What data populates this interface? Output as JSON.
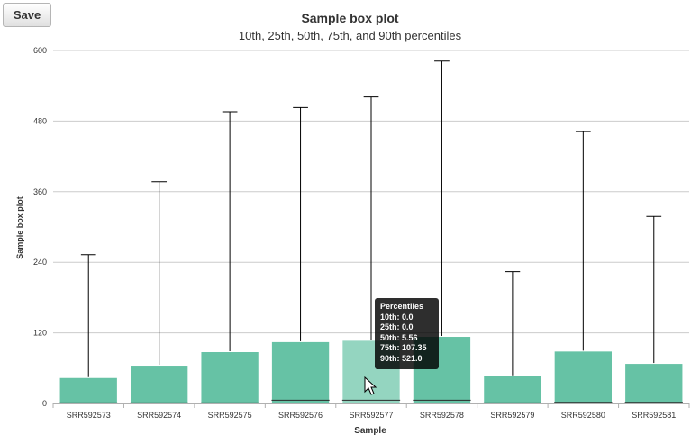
{
  "toolbar": {
    "save_label": "Save"
  },
  "colors": {
    "box": "#66c2a5",
    "box_highlight": "#94d5c0",
    "whisker": "#000000",
    "grid": "#cccccc"
  },
  "chart_data": {
    "type": "box",
    "title": "Sample box plot",
    "subtitle": "10th, 25th, 50th, 75th, and 90th percentiles",
    "xlabel": "Sample",
    "ylabel": "Sample box plot",
    "ylim": [
      0,
      600
    ],
    "yticks": [
      0,
      120,
      240,
      360,
      480,
      600
    ],
    "grid": true,
    "categories": [
      "SRR592573",
      "SRR592574",
      "SRR592575",
      "SRR592576",
      "SRR592577",
      "SRR592578",
      "SRR592579",
      "SRR592580",
      "SRR592581"
    ],
    "boxes": [
      {
        "p10": 0.0,
        "p25": 0.0,
        "p50": 1.0,
        "p75": 44.0,
        "p90": 253.0
      },
      {
        "p10": 0.0,
        "p25": 0.0,
        "p50": 1.0,
        "p75": 65.0,
        "p90": 377.0
      },
      {
        "p10": 0.0,
        "p25": 0.0,
        "p50": 1.0,
        "p75": 88.0,
        "p90": 496.0
      },
      {
        "p10": 0.0,
        "p25": 0.0,
        "p50": 5.5,
        "p75": 105.0,
        "p90": 503.0
      },
      {
        "p10": 0.0,
        "p25": 0.0,
        "p50": 5.56,
        "p75": 107.35,
        "p90": 521.0
      },
      {
        "p10": 0.0,
        "p25": 0.0,
        "p50": 5.5,
        "p75": 114.0,
        "p90": 582.0
      },
      {
        "p10": 0.0,
        "p25": 0.0,
        "p50": 1.0,
        "p75": 47.0,
        "p90": 224.0
      },
      {
        "p10": 0.0,
        "p25": 0.0,
        "p50": 2.0,
        "p75": 89.0,
        "p90": 462.0
      },
      {
        "p10": 0.0,
        "p25": 0.0,
        "p50": 2.0,
        "p75": 68.0,
        "p90": 318.0
      }
    ],
    "highlighted_index": 4
  },
  "tooltip": {
    "title": "Percentiles",
    "lines": [
      "10th: 0.0",
      "25th: 0.0",
      "50th: 5.56",
      "75th: 107.35",
      "90th: 521.0"
    ]
  }
}
